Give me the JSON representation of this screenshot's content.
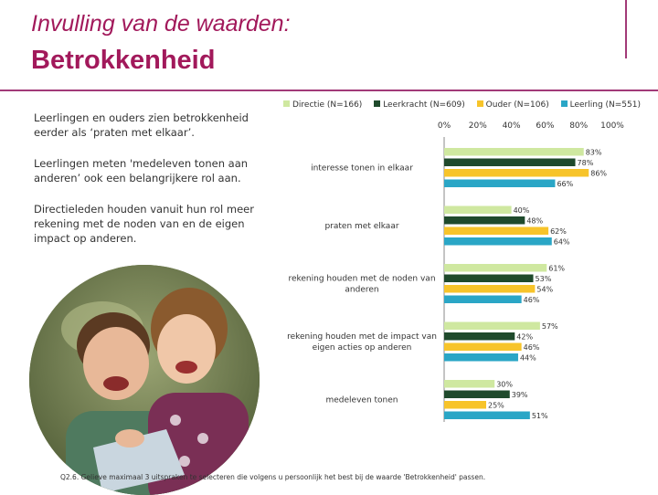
{
  "header": {
    "title_line1": "Invulling van de waarden:",
    "title_line2": "Betrokkenheid"
  },
  "bullets": [
    "Leerlingen en ouders zien betrokkenheid eerder als ‘praten met elkaar’.",
    "Leerlingen meten 'medeleven tonen aan anderen’ ook een belangrijkere rol aan.",
    "Directieleden houden vanuit hun rol meer rekening met de noden van en de eigen impact op anderen."
  ],
  "footnote": "Q2.6. Gelieve maximaal 3 uitspraken te selecteren die volgens u persoonlijk het best bij de waarde 'Betrokkenheid' passen.",
  "colors": {
    "accent": "#a2195b",
    "frame": "#a23a78"
  },
  "chart_data": {
    "type": "bar",
    "orientation": "horizontal",
    "categories": [
      "interesse tonen in elkaar",
      "praten met elkaar",
      "rekening houden met de noden van anderen",
      "rekening houden met de impact van eigen acties op anderen",
      "medeleven tonen"
    ],
    "series": [
      {
        "name": "Directie (N=166)",
        "color": "#cfe8a0",
        "values": [
          83,
          40,
          61,
          57,
          30
        ]
      },
      {
        "name": "Leerkracht (N=609)",
        "color": "#1f4a2c",
        "values": [
          78,
          48,
          53,
          42,
          39
        ]
      },
      {
        "name": "Ouder (N=106)",
        "color": "#f7c42a",
        "values": [
          86,
          62,
          54,
          46,
          25
        ]
      },
      {
        "name": "Leerling (N=551)",
        "color": "#2aa6c6",
        "values": [
          66,
          64,
          46,
          44,
          51
        ]
      }
    ],
    "xticks": [
      "0%",
      "20%",
      "40%",
      "60%",
      "80%",
      "100%"
    ],
    "xlim": [
      0,
      100
    ],
    "value_suffix": "%",
    "legend_position": "top",
    "grid": false
  }
}
